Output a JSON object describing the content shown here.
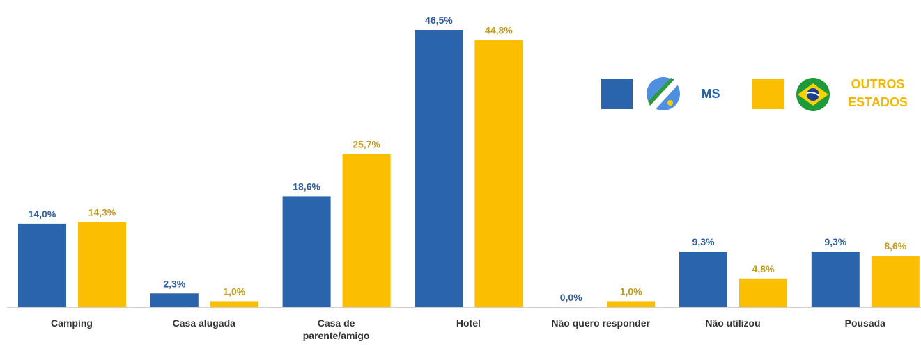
{
  "chart_data": {
    "type": "bar",
    "categories": [
      "Camping",
      "Casa alugada",
      "Casa de\nparente/amigo",
      "Hotel",
      "Não quero responder",
      "Não utilizou",
      "Pousada"
    ],
    "series": [
      {
        "name": "MS",
        "color": "#2a64ad",
        "values": [
          14.0,
          2.3,
          18.6,
          46.5,
          0.0,
          9.3,
          9.3
        ],
        "value_labels": [
          "14,0%",
          "2,3%",
          "18,6%",
          "46,5%",
          "0,0%",
          "9,3%",
          "9,3%"
        ]
      },
      {
        "name": "OUTROS ESTADOS",
        "color": "#fbbe00",
        "values": [
          14.3,
          1.0,
          25.7,
          44.8,
          1.0,
          4.8,
          8.6
        ],
        "value_labels": [
          "14,3%",
          "1,0%",
          "25,7%",
          "44,8%",
          "1,0%",
          "4,8%",
          "8,6%"
        ]
      }
    ]
  }
}
